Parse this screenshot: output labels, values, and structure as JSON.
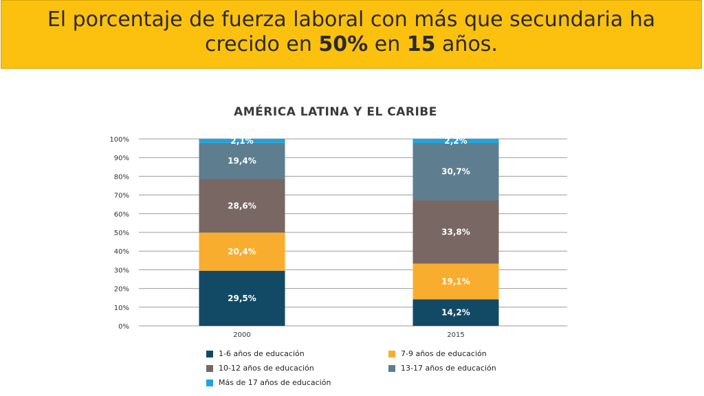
{
  "header": {
    "line1": "El porcentaje de fuerza laboral con más que secundaria ha",
    "line2_pre": "crecido en ",
    "line2_bold1": "50%",
    "line2_mid": " en ",
    "line2_bold2": "15",
    "line2_post": " años."
  },
  "chart_data": {
    "type": "bar",
    "stacked": true,
    "title": "AMÉRICA LATINA Y EL CARIBE",
    "categories": [
      "2000",
      "2015"
    ],
    "ylim": [
      0,
      100
    ],
    "yticks": [
      "0%",
      "10%",
      "20%",
      "30%",
      "40%",
      "50%",
      "60%",
      "70%",
      "80%",
      "90%",
      "100%"
    ],
    "series": [
      {
        "name": "1-6 años de educación",
        "color": "#124a66",
        "values": [
          29.5,
          14.2
        ],
        "labels": [
          "29,5%",
          "14,2%"
        ]
      },
      {
        "name": "7-9 años de educación",
        "color": "#f8ad2f",
        "values": [
          20.4,
          19.1
        ],
        "labels": [
          "20,4%",
          "19,1%"
        ]
      },
      {
        "name": "10-12 años de educación",
        "color": "#786762",
        "values": [
          28.6,
          33.8
        ],
        "labels": [
          "28,6%",
          "33,8%"
        ]
      },
      {
        "name": "13-17 años de educación",
        "color": "#5e7e90",
        "values": [
          19.4,
          30.7
        ],
        "labels": [
          "19,4%",
          "30,7%"
        ]
      },
      {
        "name": "Más de 17 años de educación",
        "color": "#1ea3de",
        "values": [
          2.1,
          2.2
        ],
        "labels": [
          "2,1%",
          "2,2%"
        ]
      }
    ],
    "grid": true,
    "legend": "bottom"
  }
}
